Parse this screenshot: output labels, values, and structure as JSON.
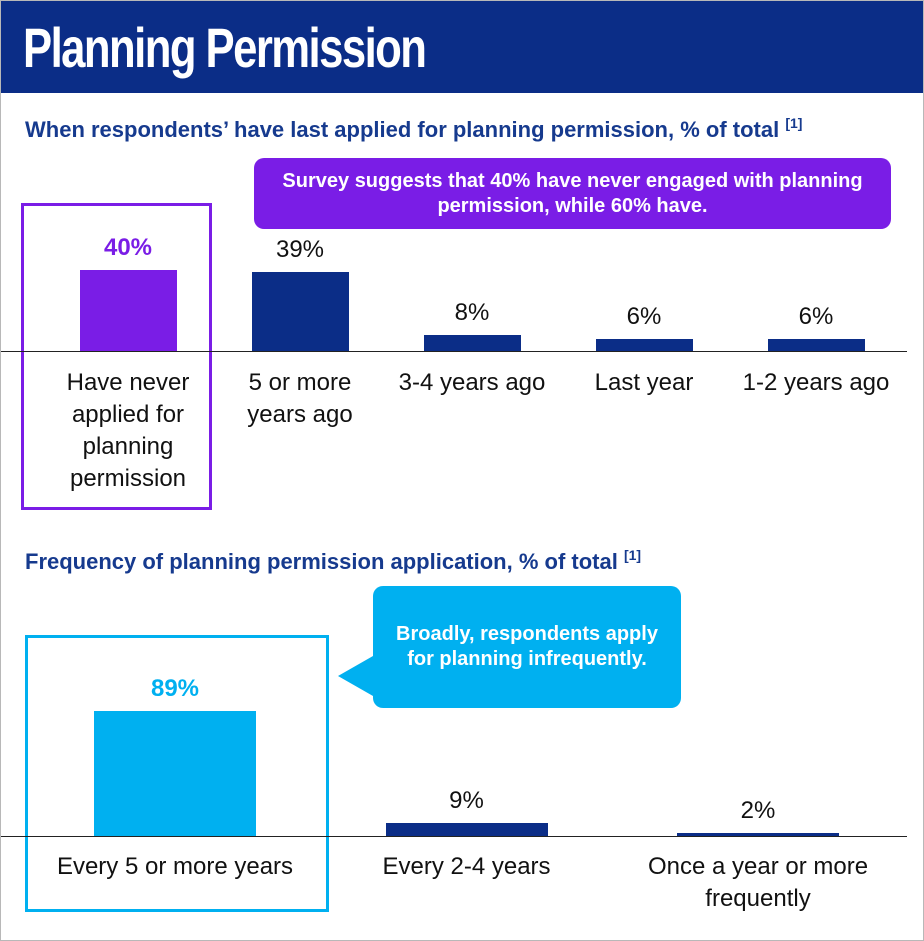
{
  "header": {
    "title": "Planning Permission"
  },
  "chart_data": [
    {
      "type": "bar",
      "title": "When respondents’ have last applied for planning permission, % of total",
      "footnote": "[1]",
      "callout": "Survey suggests that 40% have never engaged with planning permission, while 60% have.",
      "categories": [
        "Have never applied for planning permission",
        "5 or more years ago",
        "3-4 years ago",
        "Last year",
        "1-2 years ago"
      ],
      "values": [
        40,
        39,
        8,
        6,
        6
      ],
      "value_labels": [
        "40%",
        "39%",
        "8%",
        "6%",
        "6%"
      ],
      "color": "#0b2d87",
      "highlight_color": "#7a1de6",
      "highlight": 0
    },
    {
      "type": "bar",
      "title": "Frequency of planning permission application, % of total",
      "footnote": "[1]",
      "callout": "Broadly, respondents apply for planning infrequently.",
      "categories": [
        "Every 5 or more years",
        "Every 2-4 years",
        "Once a year or more frequently"
      ],
      "values": [
        89,
        9,
        2
      ],
      "value_labels": [
        "89%",
        "9%",
        "2%"
      ],
      "color": "#0b2d87",
      "highlight_color": "#00b0f0",
      "highlight": 0
    }
  ]
}
